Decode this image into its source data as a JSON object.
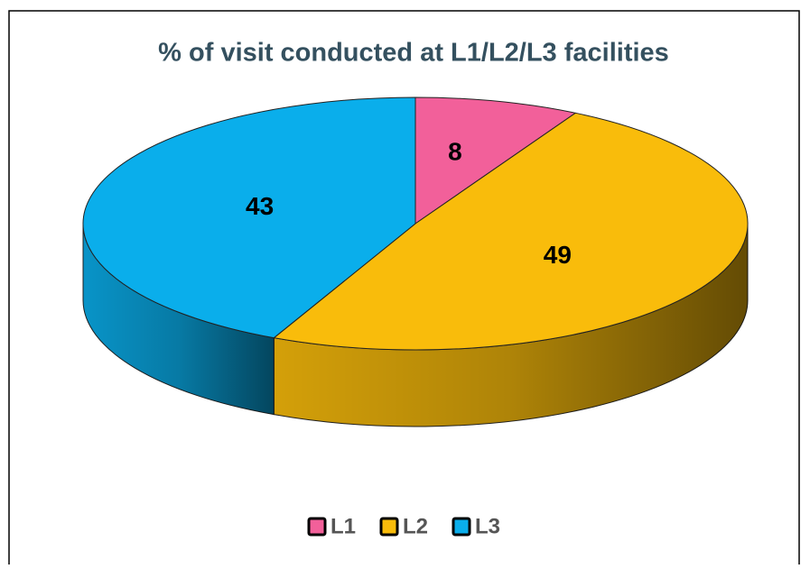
{
  "chart_data": {
    "type": "pie",
    "title": "% of visit conducted  at L1/L2/L3 facilities",
    "categories": [
      "L1",
      "L2",
      "L3"
    ],
    "values": [
      8,
      49,
      43
    ],
    "colors": [
      "#f2609a",
      "#f9bc0b",
      "#0aaeeb"
    ],
    "legend": "bottom"
  }
}
